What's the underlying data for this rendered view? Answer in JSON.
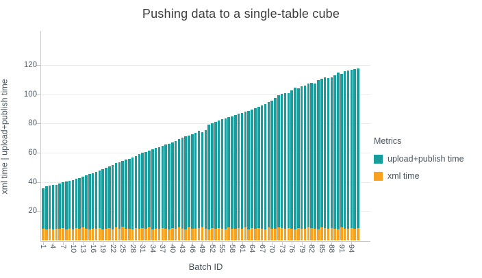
{
  "chart_data": {
    "type": "bar",
    "stacked": true,
    "title": "Pushing data to a single-table cube",
    "xlabel": "Batch ID",
    "ylabel": "xml time  |  upload+publish time",
    "legend_title": "Metrics",
    "legend_position": "right",
    "grid": "horizontal",
    "n_bars": 96,
    "batch_id_start": 1,
    "x_tick_labels": [
      "1",
      "4",
      "7",
      "10",
      "13",
      "16",
      "19",
      "22",
      "25",
      "28",
      "31",
      "34",
      "37",
      "40",
      "43",
      "46",
      "49",
      "52",
      "55",
      "58",
      "61",
      "64",
      "67",
      "70",
      "73",
      "76",
      "79",
      "82",
      "85",
      "88",
      "91",
      "94"
    ],
    "y_ticks": [
      20,
      40,
      60,
      80,
      100,
      120
    ],
    "ylim": [
      0,
      124
    ],
    "series": [
      {
        "name": "upload+publish time",
        "color": "#189C9C",
        "stack_order": "top",
        "values": [
          27.3,
          29.4,
          29.4,
          30.8,
          30.0,
          31.0,
          31.7,
          32.8,
          32.9,
          33.6,
          33.7,
          34.9,
          34.6,
          36.4,
          37.7,
          37.9,
          39.2,
          39.4,
          41.1,
          41.8,
          42.4,
          44.1,
          44.1,
          45.5,
          45.3,
          47.4,
          47.7,
          49.0,
          49.4,
          51.4,
          51.4,
          52.5,
          52.3,
          54.5,
          54.9,
          56.2,
          56.2,
          57.6,
          58.7,
          58.8,
          60.3,
          60.5,
          62.1,
          63.6,
          62.9,
          64.6,
          66.0,
          66.6,
          64.9,
          67.5,
          71.3,
          71.9,
          73.3,
          73.4,
          74.7,
          75.9,
          75.5,
          76.8,
          78.0,
          78.1,
          79.3,
          79.0,
          81.1,
          81.2,
          82.6,
          83.0,
          84.4,
          85.9,
          85.8,
          87.3,
          89.7,
          90.7,
          92.1,
          93.0,
          92.5,
          94.7,
          96.9,
          95.7,
          97.4,
          98.2,
          98.1,
          99.4,
          99.5,
          102.2,
          101.8,
          103.1,
          103.1,
          103.0,
          104.8,
          107.3,
          105.1,
          107.4,
          108.7,
          108.4,
          109.1,
          109.0
        ]
      },
      {
        "name": "xml time",
        "color": "#F8A11E",
        "stack_order": "bottom",
        "values": [
          8.2,
          7.6,
          8.0,
          7.4,
          8.1,
          7.8,
          8.3,
          7.5,
          8.0,
          7.7,
          8.4,
          7.9,
          9.0,
          8.1,
          7.6,
          8.2,
          7.8,
          8.5,
          7.7,
          8.0,
          8.3,
          7.6,
          8.8,
          8.0,
          9.2,
          7.8,
          8.1,
          7.5,
          8.4,
          7.9,
          8.6,
          8.0,
          9.0,
          7.7,
          8.2,
          7.8,
          8.5,
          8.0,
          7.6,
          8.3,
          7.9,
          8.7,
          8.1,
          7.6,
          8.9,
          8.2,
          7.8,
          8.4,
          9.1,
          8.0,
          7.7,
          8.3,
          7.9,
          8.6,
          8.1,
          7.6,
          8.8,
          8.2,
          7.8,
          8.4,
          8.0,
          9.0,
          7.7,
          8.3,
          7.9,
          8.5,
          8.1,
          7.6,
          8.7,
          8.2,
          7.8,
          8.9,
          8.3,
          7.9,
          8.5,
          8.0,
          7.7,
          8.6,
          8.2,
          7.8,
          9.1,
          8.4,
          8.0,
          7.6,
          8.8,
          8.3,
          7.9,
          8.5,
          8.1,
          7.7,
          8.9,
          8.2,
          7.8,
          8.4,
          8.0,
          8.6
        ]
      }
    ],
    "stack_totals": [
      35.5,
      37.0,
      37.4,
      38.2,
      38.1,
      38.8,
      40.0,
      40.3,
      40.9,
      41.3,
      42.1,
      42.8,
      43.6,
      44.5,
      45.3,
      46.1,
      47.0,
      47.9,
      48.8,
      49.8,
      50.7,
      51.7,
      52.9,
      53.5,
      54.5,
      55.2,
      55.8,
      56.5,
      57.8,
      59.3,
      60.0,
      60.5,
      61.3,
      62.2,
      63.1,
      64.0,
      64.7,
      65.6,
      66.3,
      67.1,
      68.2,
      69.2,
      70.2,
      71.2,
      71.8,
      72.8,
      73.8,
      75.0,
      74.0,
      75.5,
      79.0,
      80.2,
      81.2,
      82.0,
      82.8,
      83.5,
      84.3,
      85.0,
      85.8,
      86.5,
      87.3,
      88.0,
      88.8,
      89.5,
      90.5,
      91.5,
      92.5,
      93.5,
      94.5,
      95.5,
      97.5,
      99.6,
      100.4,
      100.9,
      101.0,
      102.7,
      104.6,
      104.3,
      105.6,
      106.0,
      107.2,
      107.8,
      107.5,
      109.8,
      110.6,
      111.4,
      111.0,
      111.5,
      112.9,
      115.0,
      114.0,
      115.6,
      116.5,
      116.8,
      117.1,
      117.6
    ]
  },
  "colors": {
    "upload_publish": "#189C9C",
    "xml": "#F8A11E",
    "grid": "#EBEBEB",
    "axis": "#C4C4C4",
    "tick_text": "#556068",
    "title_text": "#3C3C3C"
  }
}
